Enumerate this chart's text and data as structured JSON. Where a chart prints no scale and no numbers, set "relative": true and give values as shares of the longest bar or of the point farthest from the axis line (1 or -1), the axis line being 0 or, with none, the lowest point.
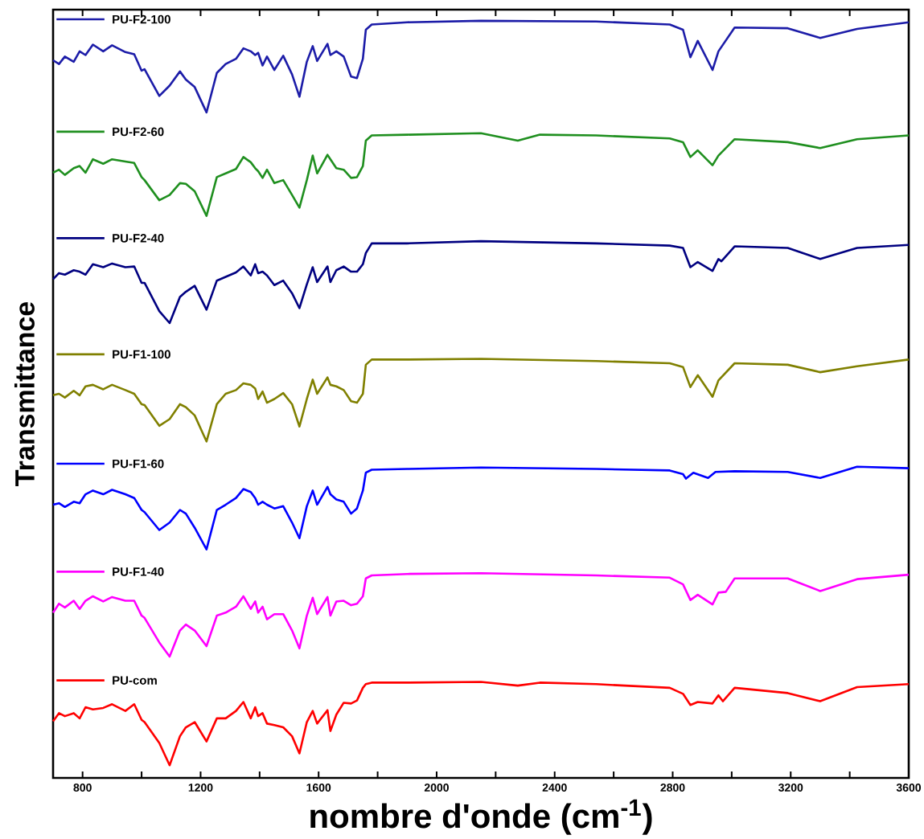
{
  "chart_data": {
    "type": "line",
    "relative": true,
    "legend": "left",
    "xlabel": "nombre d'onde (cm$^{-1}$)",
    "ylabel": "Transmittance",
    "xlim": [
      700,
      3600
    ],
    "xticks": [
      800,
      {
        "value": 1000,
        "label": null
      },
      1200,
      {
        "value": 1400,
        "label": null
      },
      1600,
      {
        "value": 1800,
        "label": null
      },
      2000,
      {
        "value": 2200,
        "label": null
      },
      2400,
      {
        "value": 2600,
        "label": null
      },
      2800,
      {
        "value": 3000,
        "label": null
      },
      3200,
      {
        "value": 3400,
        "label": null
      },
      3600
    ],
    "series": [
      {
        "name": "PU-F2-100",
        "color": "#1c1ca8",
        "x": [
          700,
          720,
          740,
          770,
          790,
          810,
          835,
          870,
          900,
          945,
          975,
          1000,
          1010,
          1060,
          1095,
          1130,
          1150,
          1180,
          1220,
          1255,
          1285,
          1320,
          1345,
          1370,
          1385,
          1395,
          1410,
          1425,
          1450,
          1480,
          1510,
          1535,
          1560,
          1580,
          1595,
          1630,
          1640,
          1660,
          1685,
          1710,
          1730,
          1750,
          1760,
          1780,
          1900,
          2150,
          2540,
          2790,
          2835,
          2860,
          2885,
          2935,
          2955,
          3010,
          3190,
          3300,
          3425,
          3600
        ],
        "values": [
          0.947,
          0.942,
          0.952,
          0.945,
          0.959,
          0.954,
          0.968,
          0.959,
          0.967,
          0.958,
          0.955,
          0.933,
          0.935,
          0.899,
          0.913,
          0.932,
          0.921,
          0.911,
          0.877,
          0.93,
          0.942,
          0.949,
          0.963,
          0.959,
          0.954,
          0.957,
          0.94,
          0.952,
          0.934,
          0.953,
          0.928,
          0.898,
          0.945,
          0.966,
          0.946,
          0.969,
          0.954,
          0.959,
          0.952,
          0.925,
          0.923,
          0.949,
          0.988,
          0.995,
          0.998,
          1.0,
          0.999,
          0.995,
          0.988,
          0.951,
          0.973,
          0.934,
          0.959,
          0.991,
          0.99,
          0.977,
          0.989,
          0.998
        ]
      },
      {
        "name": "PU-F2-60",
        "color": "#1f8f1f",
        "x": [
          700,
          720,
          740,
          770,
          790,
          810,
          835,
          870,
          900,
          945,
          975,
          1000,
          1010,
          1060,
          1095,
          1130,
          1150,
          1180,
          1220,
          1255,
          1285,
          1320,
          1345,
          1370,
          1385,
          1395,
          1410,
          1425,
          1450,
          1480,
          1510,
          1535,
          1560,
          1580,
          1595,
          1630,
          1640,
          1660,
          1685,
          1710,
          1730,
          1750,
          1760,
          1780,
          1900,
          2150,
          2275,
          2350,
          2540,
          2790,
          2835,
          2860,
          2885,
          2935,
          2955,
          3010,
          3190,
          3300,
          3425,
          3600
        ],
        "values": [
          0.796,
          0.8,
          0.793,
          0.802,
          0.805,
          0.796,
          0.814,
          0.808,
          0.814,
          0.811,
          0.809,
          0.79,
          0.786,
          0.759,
          0.766,
          0.782,
          0.781,
          0.771,
          0.738,
          0.79,
          0.795,
          0.801,
          0.817,
          0.81,
          0.802,
          0.798,
          0.789,
          0.8,
          0.782,
          0.786,
          0.766,
          0.749,
          0.786,
          0.819,
          0.795,
          0.82,
          0.814,
          0.802,
          0.8,
          0.789,
          0.79,
          0.805,
          0.839,
          0.846,
          0.847,
          0.849,
          0.839,
          0.847,
          0.846,
          0.842,
          0.837,
          0.817,
          0.826,
          0.806,
          0.819,
          0.841,
          0.837,
          0.829,
          0.841,
          0.846
        ]
      },
      {
        "name": "PU-F2-40",
        "color": "#000080",
        "x": [
          700,
          720,
          740,
          770,
          790,
          810,
          835,
          870,
          900,
          945,
          975,
          1000,
          1010,
          1060,
          1095,
          1130,
          1150,
          1180,
          1220,
          1255,
          1285,
          1320,
          1345,
          1370,
          1385,
          1395,
          1410,
          1425,
          1450,
          1480,
          1510,
          1535,
          1560,
          1580,
          1595,
          1630,
          1640,
          1660,
          1685,
          1710,
          1730,
          1750,
          1760,
          1780,
          1900,
          2150,
          2540,
          2790,
          2835,
          2860,
          2885,
          2935,
          2955,
          2965,
          2990,
          3010,
          3190,
          3300,
          3425,
          3600
        ],
        "values": [
          0.653,
          0.661,
          0.659,
          0.665,
          0.663,
          0.659,
          0.673,
          0.669,
          0.674,
          0.669,
          0.67,
          0.648,
          0.648,
          0.61,
          0.594,
          0.629,
          0.636,
          0.644,
          0.612,
          0.651,
          0.656,
          0.662,
          0.67,
          0.658,
          0.673,
          0.661,
          0.663,
          0.658,
          0.645,
          0.651,
          0.634,
          0.614,
          0.646,
          0.669,
          0.649,
          0.67,
          0.649,
          0.665,
          0.67,
          0.663,
          0.663,
          0.673,
          0.688,
          0.701,
          0.701,
          0.704,
          0.701,
          0.698,
          0.695,
          0.669,
          0.676,
          0.664,
          0.68,
          0.677,
          0.688,
          0.697,
          0.695,
          0.68,
          0.695,
          0.699
        ]
      },
      {
        "name": "PU-F1-100",
        "color": "#808000",
        "x": [
          700,
          720,
          740,
          770,
          790,
          810,
          835,
          870,
          900,
          945,
          975,
          1000,
          1010,
          1060,
          1095,
          1130,
          1150,
          1180,
          1220,
          1255,
          1285,
          1320,
          1345,
          1370,
          1385,
          1395,
          1410,
          1425,
          1450,
          1480,
          1510,
          1535,
          1560,
          1580,
          1595,
          1630,
          1640,
          1660,
          1685,
          1710,
          1730,
          1750,
          1760,
          1780,
          1900,
          2150,
          2540,
          2790,
          2835,
          2860,
          2885,
          2935,
          2955,
          3010,
          3190,
          3300,
          3425,
          3600
        ],
        "values": [
          0.497,
          0.499,
          0.494,
          0.503,
          0.497,
          0.509,
          0.511,
          0.505,
          0.511,
          0.504,
          0.499,
          0.485,
          0.484,
          0.456,
          0.465,
          0.485,
          0.481,
          0.47,
          0.435,
          0.485,
          0.499,
          0.504,
          0.513,
          0.511,
          0.506,
          0.492,
          0.502,
          0.487,
          0.492,
          0.5,
          0.485,
          0.455,
          0.492,
          0.518,
          0.499,
          0.521,
          0.511,
          0.509,
          0.504,
          0.489,
          0.487,
          0.499,
          0.538,
          0.545,
          0.545,
          0.546,
          0.543,
          0.54,
          0.535,
          0.508,
          0.524,
          0.495,
          0.517,
          0.54,
          0.538,
          0.528,
          0.536,
          0.545
        ]
      },
      {
        "name": "PU-F1-60",
        "color": "#0000ff",
        "x": [
          700,
          720,
          740,
          770,
          790,
          810,
          835,
          870,
          900,
          945,
          975,
          1000,
          1010,
          1060,
          1095,
          1130,
          1150,
          1180,
          1220,
          1255,
          1285,
          1320,
          1345,
          1370,
          1385,
          1395,
          1410,
          1425,
          1450,
          1480,
          1510,
          1535,
          1560,
          1580,
          1595,
          1630,
          1640,
          1660,
          1685,
          1710,
          1730,
          1750,
          1760,
          1780,
          1900,
          2150,
          2540,
          2790,
          2835,
          2845,
          2870,
          2920,
          2945,
          3010,
          3190,
          3300,
          3425,
          3600
        ],
        "values": [
          0.35,
          0.352,
          0.347,
          0.354,
          0.352,
          0.364,
          0.369,
          0.364,
          0.37,
          0.364,
          0.359,
          0.343,
          0.34,
          0.316,
          0.326,
          0.343,
          0.338,
          0.319,
          0.29,
          0.343,
          0.35,
          0.359,
          0.371,
          0.367,
          0.359,
          0.35,
          0.354,
          0.35,
          0.345,
          0.348,
          0.326,
          0.305,
          0.348,
          0.369,
          0.35,
          0.374,
          0.364,
          0.357,
          0.354,
          0.338,
          0.345,
          0.369,
          0.393,
          0.397,
          0.398,
          0.4,
          0.398,
          0.396,
          0.391,
          0.385,
          0.393,
          0.386,
          0.394,
          0.395,
          0.394,
          0.386,
          0.401,
          0.399
        ]
      },
      {
        "name": "PU-F1-40",
        "color": "#ff00ff",
        "x": [
          700,
          720,
          740,
          770,
          790,
          810,
          835,
          870,
          900,
          945,
          975,
          1000,
          1010,
          1060,
          1095,
          1130,
          1150,
          1180,
          1220,
          1255,
          1285,
          1320,
          1345,
          1370,
          1385,
          1395,
          1410,
          1425,
          1450,
          1480,
          1510,
          1535,
          1560,
          1580,
          1595,
          1630,
          1640,
          1660,
          1685,
          1710,
          1730,
          1750,
          1760,
          1780,
          1900,
          2150,
          2540,
          2790,
          2835,
          2860,
          2885,
          2935,
          2955,
          2980,
          3010,
          3190,
          3300,
          3425,
          3600
        ],
        "values": [
          0.205,
          0.217,
          0.212,
          0.221,
          0.21,
          0.221,
          0.227,
          0.22,
          0.226,
          0.221,
          0.221,
          0.201,
          0.198,
          0.165,
          0.146,
          0.181,
          0.189,
          0.181,
          0.16,
          0.201,
          0.205,
          0.213,
          0.227,
          0.21,
          0.22,
          0.205,
          0.213,
          0.196,
          0.203,
          0.203,
          0.181,
          0.157,
          0.201,
          0.225,
          0.203,
          0.226,
          0.201,
          0.22,
          0.221,
          0.215,
          0.217,
          0.227,
          0.251,
          0.255,
          0.257,
          0.258,
          0.255,
          0.252,
          0.243,
          0.222,
          0.229,
          0.216,
          0.232,
          0.233,
          0.251,
          0.251,
          0.234,
          0.25,
          0.256
        ]
      },
      {
        "name": "PU-com",
        "color": "#ff0000",
        "x": [
          700,
          720,
          740,
          770,
          790,
          810,
          835,
          870,
          900,
          945,
          975,
          1000,
          1010,
          1060,
          1095,
          1130,
          1150,
          1180,
          1220,
          1255,
          1285,
          1320,
          1345,
          1370,
          1385,
          1395,
          1410,
          1425,
          1450,
          1480,
          1510,
          1535,
          1560,
          1580,
          1595,
          1630,
          1640,
          1660,
          1685,
          1710,
          1730,
          1750,
          1760,
          1780,
          1900,
          2150,
          2275,
          2350,
          2540,
          2790,
          2835,
          2860,
          2885,
          2935,
          2955,
          2970,
          3010,
          3190,
          3300,
          3425,
          3600
        ],
        "values": [
          0.059,
          0.07,
          0.066,
          0.07,
          0.063,
          0.078,
          0.075,
          0.077,
          0.082,
          0.073,
          0.082,
          0.061,
          0.058,
          0.03,
          0.0,
          0.039,
          0.051,
          0.058,
          0.032,
          0.063,
          0.063,
          0.073,
          0.085,
          0.063,
          0.078,
          0.066,
          0.07,
          0.056,
          0.054,
          0.051,
          0.039,
          0.016,
          0.058,
          0.073,
          0.056,
          0.074,
          0.046,
          0.068,
          0.084,
          0.083,
          0.087,
          0.104,
          0.109,
          0.111,
          0.111,
          0.112,
          0.107,
          0.111,
          0.109,
          0.104,
          0.096,
          0.081,
          0.085,
          0.083,
          0.094,
          0.086,
          0.104,
          0.097,
          0.086,
          0.105,
          0.109
        ]
      }
    ]
  }
}
